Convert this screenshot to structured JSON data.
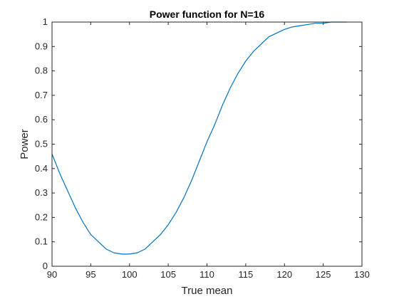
{
  "chart_data": {
    "type": "line",
    "title": "Power function for N=16",
    "xlabel": "True mean",
    "ylabel": "Power",
    "xlim": [
      90,
      130
    ],
    "ylim": [
      0,
      1
    ],
    "xticks": [
      90,
      95,
      100,
      105,
      110,
      115,
      120,
      125,
      130
    ],
    "yticks": [
      0,
      0.1,
      0.2,
      0.3,
      0.4,
      0.5,
      0.6,
      0.7,
      0.8,
      0.9,
      1
    ],
    "grid": false,
    "line_color": "#0072BD",
    "series": [
      {
        "x": [
          90,
          91,
          92,
          93,
          94,
          95,
          96,
          97,
          98,
          99,
          100,
          101,
          102,
          103,
          104,
          105,
          106,
          107,
          108,
          109,
          110,
          111,
          112,
          113,
          114,
          115,
          116,
          117,
          118,
          119,
          120,
          121,
          122,
          123,
          124,
          125,
          126,
          127,
          128
        ],
        "y": [
          0.46,
          0.38,
          0.31,
          0.24,
          0.18,
          0.13,
          0.1,
          0.07,
          0.055,
          0.05,
          0.05,
          0.055,
          0.07,
          0.1,
          0.13,
          0.17,
          0.22,
          0.28,
          0.35,
          0.43,
          0.51,
          0.58,
          0.66,
          0.73,
          0.79,
          0.84,
          0.88,
          0.91,
          0.94,
          0.955,
          0.97,
          0.98,
          0.985,
          0.99,
          0.995,
          0.995,
          1.0,
          1.0,
          1.0
        ]
      }
    ]
  }
}
